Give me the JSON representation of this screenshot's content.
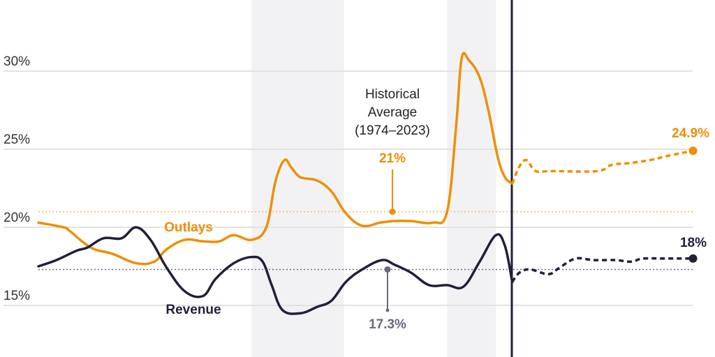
{
  "chart_data": {
    "type": "line",
    "title": "",
    "xlabel": "",
    "ylabel": "",
    "ylim": [
      13,
      33
    ],
    "y_ticks": [
      "15%",
      "20%",
      "25%",
      "30%"
    ],
    "y_tick_values": [
      15,
      20,
      25,
      30
    ],
    "grid": true,
    "colors": {
      "outlays": "#ee8f00",
      "revenue": "#221f3a",
      "revenue_average": "#6b6880",
      "shade": "#f2f2f4"
    },
    "projection_start": 2024.2,
    "shaded_periods": [
      [
        2009.8,
        2014.9
      ],
      [
        2020.6,
        2023.3
      ]
    ],
    "series": [
      {
        "name": "Outlays",
        "historical": [
          [
            1998.0,
            20.3
          ],
          [
            1999.4,
            20.0
          ],
          [
            1999.7,
            19.8
          ],
          [
            2000.9,
            18.7
          ],
          [
            2002.1,
            18.3
          ],
          [
            2003.4,
            17.7
          ],
          [
            2004.4,
            17.8
          ],
          [
            2005.1,
            18.6
          ],
          [
            2006.1,
            19.2
          ],
          [
            2007.1,
            19.1
          ],
          [
            2008.0,
            19.1
          ],
          [
            2008.8,
            19.5
          ],
          [
            2009.8,
            19.2
          ],
          [
            2010.6,
            20.0
          ],
          [
            2011.1,
            22.9
          ],
          [
            2011.6,
            24.3
          ],
          [
            2012.0,
            23.8
          ],
          [
            2012.5,
            23.2
          ],
          [
            2013.4,
            23.0
          ],
          [
            2014.2,
            22.3
          ],
          [
            2015.0,
            20.9
          ],
          [
            2015.9,
            20.1
          ],
          [
            2016.9,
            20.3
          ],
          [
            2017.7,
            20.4
          ],
          [
            2018.6,
            20.4
          ],
          [
            2019.8,
            20.3
          ],
          [
            2020.6,
            21.0
          ],
          [
            2021.1,
            26.5
          ],
          [
            2021.4,
            30.8
          ],
          [
            2021.8,
            30.7
          ],
          [
            2022.4,
            29.6
          ],
          [
            2022.9,
            27.4
          ],
          [
            2023.4,
            24.5
          ],
          [
            2023.8,
            23.2
          ],
          [
            2024.2,
            22.8
          ]
        ],
        "projected": [
          [
            2024.2,
            22.8
          ],
          [
            2024.6,
            23.9
          ],
          [
            2025.0,
            24.3
          ],
          [
            2025.5,
            23.6
          ],
          [
            2026.4,
            23.6
          ],
          [
            2028.9,
            23.6
          ],
          [
            2029.7,
            24.0
          ],
          [
            2030.6,
            24.1
          ],
          [
            2031.8,
            24.3
          ],
          [
            2032.9,
            24.6
          ],
          [
            2034.2,
            24.9
          ]
        ],
        "end_label": "24.9%",
        "historical_average": 21,
        "average_label": "21%"
      },
      {
        "name": "Revenue",
        "historical": [
          [
            1998.0,
            17.5
          ],
          [
            1999.0,
            17.9
          ],
          [
            2000.1,
            18.5
          ],
          [
            2000.7,
            18.7
          ],
          [
            2001.6,
            19.3
          ],
          [
            2002.6,
            19.3
          ],
          [
            2003.4,
            20.0
          ],
          [
            2004.2,
            19.2
          ],
          [
            2005.1,
            17.4
          ],
          [
            2006.1,
            15.9
          ],
          [
            2007.1,
            15.6
          ],
          [
            2007.8,
            16.7
          ],
          [
            2008.8,
            17.7
          ],
          [
            2009.8,
            18.1
          ],
          [
            2010.4,
            17.8
          ],
          [
            2010.9,
            16.3
          ],
          [
            2011.5,
            14.7
          ],
          [
            2012.5,
            14.5
          ],
          [
            2013.4,
            14.9
          ],
          [
            2014.2,
            15.3
          ],
          [
            2015.0,
            16.5
          ],
          [
            2015.9,
            17.3
          ],
          [
            2017.0,
            17.9
          ],
          [
            2017.7,
            17.6
          ],
          [
            2018.6,
            17.1
          ],
          [
            2019.6,
            16.3
          ],
          [
            2020.6,
            16.3
          ],
          [
            2021.5,
            16.2
          ],
          [
            2022.4,
            17.8
          ],
          [
            2023.3,
            19.5
          ],
          [
            2023.8,
            18.8
          ],
          [
            2024.2,
            16.5
          ]
        ],
        "projected": [
          [
            2024.2,
            16.5
          ],
          [
            2024.6,
            17.1
          ],
          [
            2025.2,
            17.3
          ],
          [
            2026.2,
            17.0
          ],
          [
            2026.8,
            17.4
          ],
          [
            2027.7,
            18.0
          ],
          [
            2028.7,
            17.9
          ],
          [
            2029.9,
            17.9
          ],
          [
            2030.8,
            17.8
          ],
          [
            2031.4,
            18.0
          ],
          [
            2032.6,
            18.0
          ],
          [
            2034.2,
            18.0
          ]
        ],
        "end_label": "18%",
        "historical_average": 17.3,
        "average_label": "17.3%"
      }
    ],
    "annotations": {
      "historical_average_lines": [
        "Historical",
        "Average",
        "(1974–2023)"
      ]
    }
  }
}
